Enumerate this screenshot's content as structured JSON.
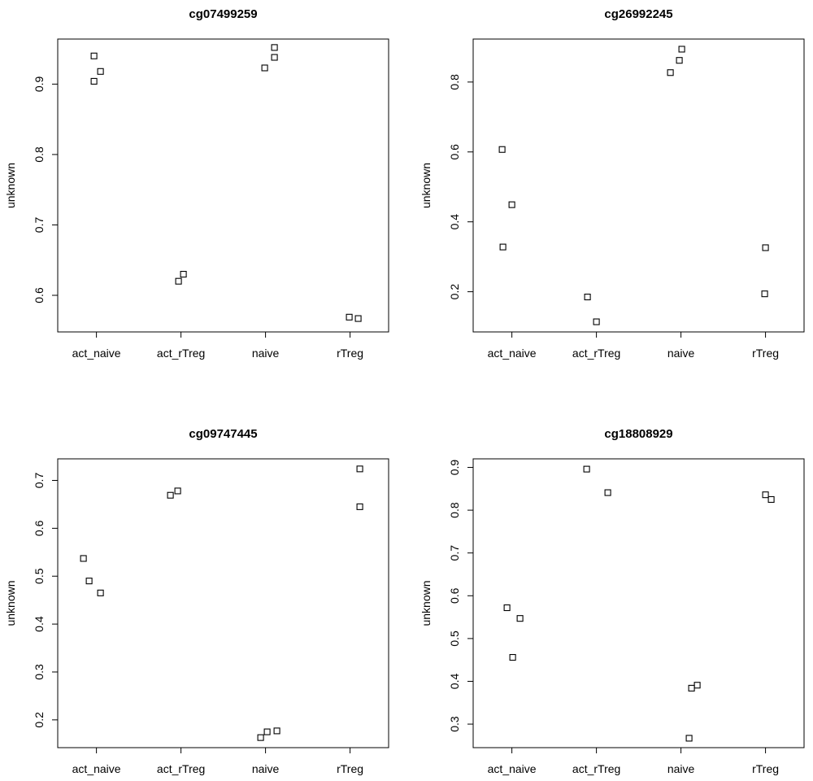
{
  "chart_data": [
    {
      "type": "scatter",
      "title": "cg07499259",
      "ylabel": "unknown",
      "xlabel": "",
      "categories": [
        "act_naive",
        "act_rTreg",
        "naive",
        "rTreg"
      ],
      "ylim": [
        0.548,
        0.964
      ],
      "yticks": [
        "0.6",
        "0.7",
        "0.8",
        "0.9"
      ],
      "points": [
        {
          "category": "act_naive",
          "y": 0.94
        },
        {
          "category": "act_naive",
          "y": 0.918
        },
        {
          "category": "act_naive",
          "y": 0.904
        },
        {
          "category": "act_rTreg",
          "y": 0.63
        },
        {
          "category": "act_rTreg",
          "y": 0.62
        },
        {
          "category": "naive",
          "y": 0.952
        },
        {
          "category": "naive",
          "y": 0.938
        },
        {
          "category": "naive",
          "y": 0.923
        },
        {
          "category": "rTreg",
          "y": 0.569
        },
        {
          "category": "rTreg",
          "y": 0.567
        }
      ]
    },
    {
      "type": "scatter",
      "title": "cg26992245",
      "ylabel": "unknown",
      "xlabel": "",
      "categories": [
        "act_naive",
        "act_rTreg",
        "naive",
        "rTreg"
      ],
      "ylim": [
        0.085,
        0.923
      ],
      "yticks": [
        "0.2",
        "0.4",
        "0.6",
        "0.8"
      ],
      "points": [
        {
          "category": "act_naive",
          "y": 0.607
        },
        {
          "category": "act_naive",
          "y": 0.449
        },
        {
          "category": "act_naive",
          "y": 0.328
        },
        {
          "category": "act_rTreg",
          "y": 0.185
        },
        {
          "category": "act_rTreg",
          "y": 0.114
        },
        {
          "category": "naive",
          "y": 0.894
        },
        {
          "category": "naive",
          "y": 0.862
        },
        {
          "category": "naive",
          "y": 0.827
        },
        {
          "category": "rTreg",
          "y": 0.326
        },
        {
          "category": "rTreg",
          "y": 0.194
        }
      ]
    },
    {
      "type": "scatter",
      "title": "cg09747445",
      "ylabel": "unknown",
      "xlabel": "",
      "categories": [
        "act_naive",
        "act_rTreg",
        "naive",
        "rTreg"
      ],
      "ylim": [
        0.142,
        0.745
      ],
      "yticks": [
        "0.2",
        "0.3",
        "0.4",
        "0.5",
        "0.6",
        "0.7"
      ],
      "points": [
        {
          "category": "act_naive",
          "y": 0.537
        },
        {
          "category": "act_naive",
          "y": 0.49
        },
        {
          "category": "act_naive",
          "y": 0.465
        },
        {
          "category": "act_rTreg",
          "y": 0.678
        },
        {
          "category": "act_rTreg",
          "y": 0.669
        },
        {
          "category": "naive",
          "y": 0.177
        },
        {
          "category": "naive",
          "y": 0.175
        },
        {
          "category": "naive",
          "y": 0.163
        },
        {
          "category": "rTreg",
          "y": 0.724
        },
        {
          "category": "rTreg",
          "y": 0.645
        }
      ]
    },
    {
      "type": "scatter",
      "title": "cg18808929",
      "ylabel": "unknown",
      "xlabel": "",
      "categories": [
        "act_naive",
        "act_rTreg",
        "naive",
        "rTreg"
      ],
      "ylim": [
        0.245,
        0.92
      ],
      "yticks": [
        "0.3",
        "0.4",
        "0.5",
        "0.6",
        "0.7",
        "0.8",
        "0.9"
      ],
      "points": [
        {
          "category": "act_naive",
          "y": 0.572
        },
        {
          "category": "act_naive",
          "y": 0.547
        },
        {
          "category": "act_naive",
          "y": 0.456
        },
        {
          "category": "act_rTreg",
          "y": 0.896
        },
        {
          "category": "act_rTreg",
          "y": 0.841
        },
        {
          "category": "naive",
          "y": 0.391
        },
        {
          "category": "naive",
          "y": 0.384
        },
        {
          "category": "naive",
          "y": 0.267
        },
        {
          "category": "rTreg",
          "y": 0.836
        },
        {
          "category": "rTreg",
          "y": 0.825
        }
      ]
    }
  ]
}
